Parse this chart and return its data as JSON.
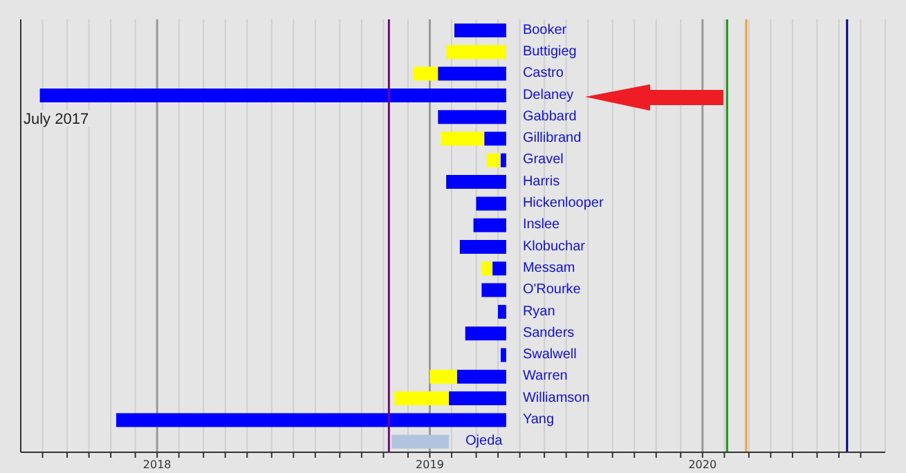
{
  "chart_data": {
    "type": "bar",
    "orientation": "horizontal",
    "categories": [
      "Booker",
      "Buttigieg",
      "Castro",
      "Delaney",
      "Gabbard",
      "Gillibrand",
      "Gravel",
      "Harris",
      "Hickenlooper",
      "Inslee",
      "Klobuchar",
      "Messam",
      "O'Rourke",
      "Ryan",
      "Sanders",
      "Swalwell",
      "Warren",
      "Williamson",
      "Yang",
      "Ojeda"
    ],
    "series": [
      {
        "color": "#ffff00",
        "base": [
          null,
          2019.06,
          2018.94,
          null,
          null,
          2019.04,
          2019.21,
          null,
          null,
          null,
          null,
          2019.19,
          null,
          null,
          null,
          null,
          2019.0,
          2018.87,
          null,
          null
        ],
        "values": [
          null,
          0.22,
          0.09,
          null,
          null,
          0.16,
          0.05,
          null,
          null,
          null,
          null,
          0.04,
          null,
          null,
          null,
          null,
          0.1,
          0.2,
          null,
          null
        ]
      },
      {
        "color": "#0000ff",
        "colors": [
          "#0000ff",
          "#0000ff",
          "#0000ff",
          "#0000ff",
          "#0000ff",
          "#0000ff",
          "#0000ff",
          "#0000ff",
          "#0000ff",
          "#0000ff",
          "#0000ff",
          "#0000ff",
          "#0000ff",
          "#0000ff",
          "#0000ff",
          "#0000ff",
          "#0000ff",
          "#0000ff",
          "#0000ff",
          "#b0c4de"
        ],
        "base": [
          2019.09,
          null,
          2019.03,
          2017.57,
          2019.03,
          2019.2,
          2019.26,
          2019.06,
          2019.17,
          2019.16,
          2019.11,
          2019.23,
          2019.19,
          2019.25,
          2019.13,
          2019.26,
          2019.1,
          2019.07,
          2017.85,
          2018.86
        ],
        "values": [
          0.19,
          null,
          0.25,
          1.71,
          0.25,
          0.08,
          0.02,
          0.22,
          0.11,
          0.12,
          0.17,
          0.05,
          0.09,
          0.03,
          0.15,
          0.02,
          0.18,
          0.21,
          1.43,
          0.21
        ]
      }
    ],
    "xlim": [
      2017.5,
      2020.67
    ],
    "xticks": [
      {
        "value": 2017.58,
        "label": null
      },
      {
        "value": 2017.67,
        "label": null
      },
      {
        "value": 2017.75,
        "label": null
      },
      {
        "value": 2017.83,
        "label": null
      },
      {
        "value": 2017.92,
        "label": null
      },
      2018,
      {
        "value": 2018.08,
        "label": null
      },
      {
        "value": 2018.17,
        "label": null
      },
      {
        "value": 2018.25,
        "label": null
      },
      {
        "value": 2018.33,
        "label": null
      },
      {
        "value": 2018.42,
        "label": null
      },
      {
        "value": 2018.5,
        "label": null
      },
      {
        "value": 2018.58,
        "label": null
      },
      {
        "value": 2018.67,
        "label": null
      },
      {
        "value": 2018.75,
        "label": null
      },
      {
        "value": 2018.83,
        "label": null
      },
      {
        "value": 2018.92,
        "label": null
      },
      2019,
      {
        "value": 2019.08,
        "label": null
      },
      {
        "value": 2019.17,
        "label": null
      },
      {
        "value": 2019.25,
        "label": null
      },
      {
        "value": 2019.33,
        "label": null
      },
      {
        "value": 2019.42,
        "label": null
      },
      {
        "value": 2019.5,
        "label": null
      },
      {
        "value": 2019.58,
        "label": null
      },
      {
        "value": 2019.67,
        "label": null
      },
      {
        "value": 2019.75,
        "label": null
      },
      {
        "value": 2019.83,
        "label": null
      },
      {
        "value": 2019.92,
        "label": null
      },
      2020,
      {
        "value": 2020.08,
        "label": null
      },
      {
        "value": 2020.17,
        "label": null
      },
      {
        "value": 2020.25,
        "label": null
      },
      {
        "value": 2020.33,
        "label": null
      },
      {
        "value": 2020.42,
        "label": null
      },
      {
        "value": 2020.5,
        "label": null
      },
      {
        "value": 2020.58,
        "label": null
      }
    ],
    "grid": "x",
    "ref_lines": [
      {
        "axis": "x",
        "value": 2018.85,
        "color": "#800080"
      },
      {
        "axis": "x",
        "value": 2020.09,
        "color": "#228b22"
      },
      {
        "axis": "x",
        "value": 2020.16,
        "color": "#f0a030"
      },
      {
        "axis": "x",
        "value": 2020.53,
        "color": "#0000a0"
      }
    ],
    "annotations": [
      "July 2017"
    ]
  }
}
